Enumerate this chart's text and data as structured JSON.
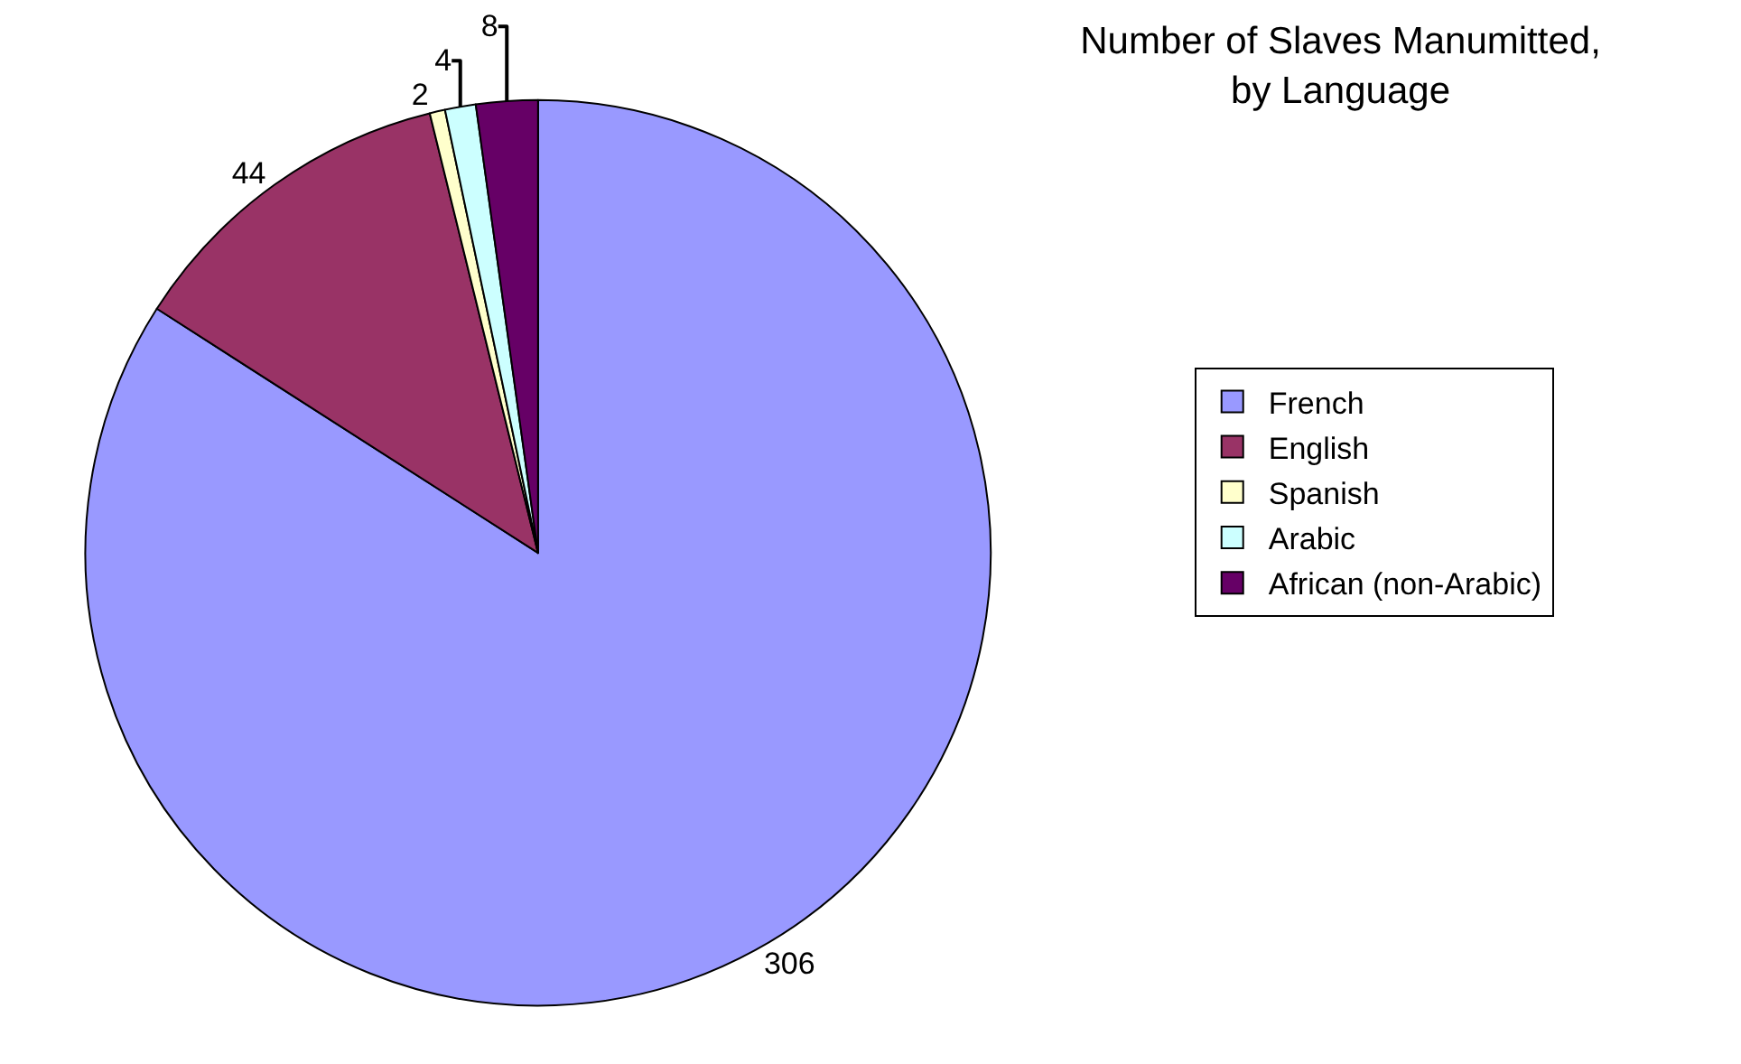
{
  "chart_data": {
    "type": "pie",
    "title": "Number of Slaves Manumitted,\nby Language",
    "categories": [
      "French",
      "English",
      "Spanish",
      "Arabic",
      "African (non-Arabic)"
    ],
    "values": [
      306,
      44,
      2,
      4,
      8
    ],
    "colors": [
      "#9999ff",
      "#993366",
      "#ffffcc",
      "#ccffff",
      "#660066"
    ],
    "data_labels": true,
    "legend": "right"
  }
}
